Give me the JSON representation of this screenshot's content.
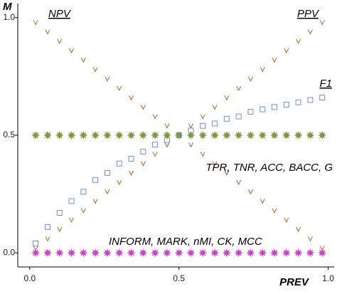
{
  "chart_data": {
    "type": "scatter",
    "x_label": "PREV",
    "y_label": "M",
    "xlim": [
      -0.04,
      1.02
    ],
    "ylim": [
      -0.06,
      1.06
    ],
    "xticks": [
      {
        "value": 0,
        "label": "0.0"
      },
      {
        "value": 0.5,
        "label": "0.5"
      },
      {
        "value": 1,
        "label": "1.0"
      }
    ],
    "yticks": [
      {
        "value": 0,
        "label": "0.0"
      },
      {
        "value": 0.5,
        "label": "0.5"
      },
      {
        "value": 1,
        "label": "1.0"
      }
    ],
    "x": [
      0.02,
      0.06,
      0.1,
      0.14,
      0.18,
      0.22,
      0.26,
      0.3,
      0.34,
      0.38,
      0.42,
      0.46,
      0.5,
      0.54,
      0.58,
      0.62,
      0.66,
      0.7,
      0.74,
      0.78,
      0.82,
      0.86,
      0.9,
      0.94,
      0.98
    ],
    "series": [
      {
        "name": "NPV",
        "color": "#b5651d",
        "marker": "v",
        "values": [
          0.98,
          0.94,
          0.9,
          0.86,
          0.82,
          0.78,
          0.74,
          0.7,
          0.66,
          0.62,
          0.58,
          0.54,
          0.5,
          0.46,
          0.42,
          0.38,
          0.34,
          0.3,
          0.26,
          0.22,
          0.18,
          0.14,
          0.1,
          0.06,
          0.02
        ]
      },
      {
        "name": "PPV",
        "color": "#b5651d",
        "marker": "v",
        "values": [
          0.02,
          0.06,
          0.1,
          0.14,
          0.18,
          0.22,
          0.26,
          0.3,
          0.34,
          0.38,
          0.42,
          0.46,
          0.5,
          0.54,
          0.58,
          0.62,
          0.66,
          0.7,
          0.74,
          0.78,
          0.82,
          0.86,
          0.9,
          0.94,
          0.98
        ]
      },
      {
        "name": "F1",
        "color": "#6a8fe0",
        "marker": "square",
        "values": [
          0.04,
          0.11,
          0.17,
          0.22,
          0.26,
          0.31,
          0.34,
          0.38,
          0.4,
          0.43,
          0.46,
          0.48,
          0.5,
          0.52,
          0.54,
          0.55,
          0.57,
          0.58,
          0.6,
          0.61,
          0.62,
          0.63,
          0.64,
          0.65,
          0.66
        ]
      },
      {
        "name": "TPR, TNR, ACC, BACC, G",
        "color": "#7a9a3a",
        "marker": "star",
        "values": [
          0.5,
          0.5,
          0.5,
          0.5,
          0.5,
          0.5,
          0.5,
          0.5,
          0.5,
          0.5,
          0.5,
          0.5,
          0.5,
          0.5,
          0.5,
          0.5,
          0.5,
          0.5,
          0.5,
          0.5,
          0.5,
          0.5,
          0.5,
          0.5,
          0.5
        ]
      },
      {
        "name": "INFORM, MARK, nMI, CK, MCC",
        "color": "#d040c8",
        "marker": "star",
        "values": [
          0,
          0,
          0,
          0,
          0,
          0,
          0,
          0,
          0,
          0,
          0,
          0,
          0,
          0,
          0,
          0,
          0,
          0,
          0,
          0,
          0,
          0,
          0,
          0,
          0
        ]
      }
    ]
  }
}
